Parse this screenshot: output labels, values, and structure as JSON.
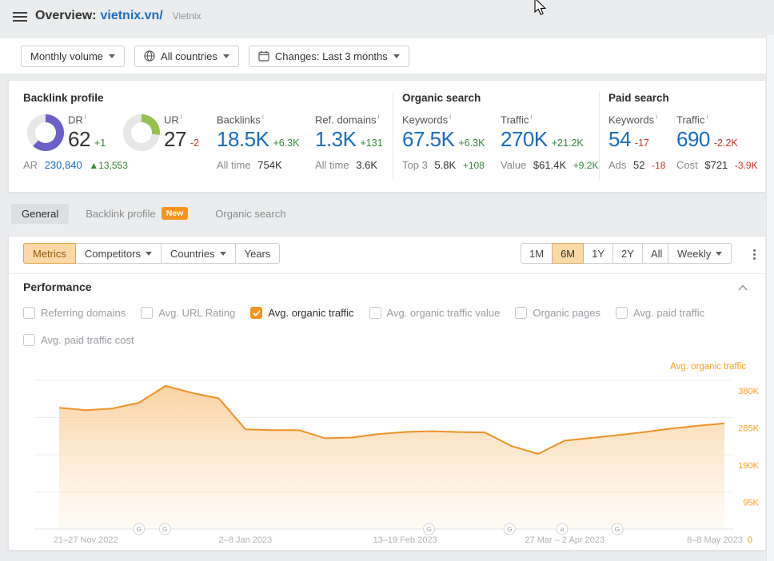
{
  "ui": {
    "info_mark": "i"
  },
  "header": {
    "title": "Overview:",
    "domain": "vietnix.vn/",
    "project": "Vietnix"
  },
  "filters": {
    "volume": "Monthly volume",
    "countries": "All countries",
    "changes": "Changes: Last 3 months"
  },
  "metrics": {
    "backlink_profile": {
      "title": "Backlink profile",
      "dr": {
        "label": "DR",
        "value": "62",
        "delta": "+1",
        "percent": 62,
        "color": "#6c5fc7"
      },
      "ur": {
        "label": "UR",
        "value": "27",
        "delta": "-2",
        "percent": 27,
        "color": "#96c04f"
      },
      "ar": {
        "label": "AR",
        "value": "230,840",
        "delta": "▲13,553"
      },
      "backlinks": {
        "label": "Backlinks",
        "value": "18.5K",
        "delta": "+6.3K",
        "sub_label": "All time",
        "sub_value": "754K"
      },
      "ref_domains": {
        "label": "Ref. domains",
        "value": "1.3K",
        "delta": "+131",
        "sub_label": "All time",
        "sub_value": "3.6K"
      }
    },
    "organic_search": {
      "title": "Organic search",
      "keywords": {
        "label": "Keywords",
        "value": "67.5K",
        "delta": "+6.3K",
        "sub_label": "Top 3",
        "sub_value": "5.8K",
        "sub_delta": "+108"
      },
      "traffic": {
        "label": "Traffic",
        "value": "270K",
        "delta": "+21.2K",
        "sub_label": "Value",
        "sub_value": "$61.4K",
        "sub_delta": "+9.2K"
      }
    },
    "paid_search": {
      "title": "Paid search",
      "keywords": {
        "label": "Keywords",
        "value": "54",
        "delta": "-17",
        "sub_label": "Ads",
        "sub_value": "52",
        "sub_delta": "-18"
      },
      "traffic": {
        "label": "Traffic",
        "value": "690",
        "delta": "-2.2K",
        "sub_label": "Cost",
        "sub_value": "$721",
        "sub_delta": "-3.9K"
      }
    }
  },
  "tabs": [
    {
      "label": "General",
      "active": true
    },
    {
      "label": "Backlink profile",
      "badge": "New"
    },
    {
      "label": "Organic search"
    }
  ],
  "toolbar": {
    "metrics": "Metrics",
    "competitors": "Competitors",
    "countries": "Countries",
    "years": "Years",
    "ranges": [
      "1M",
      "6M",
      "1Y",
      "2Y",
      "All"
    ],
    "active_range": "6M",
    "interval": "Weekly"
  },
  "performance": {
    "title": "Performance",
    "toggles": [
      {
        "label": "Referring domains",
        "checked": false
      },
      {
        "label": "Avg. URL Rating",
        "checked": false
      },
      {
        "label": "Avg. organic traffic",
        "checked": true
      },
      {
        "label": "Avg. organic traffic value",
        "checked": false
      },
      {
        "label": "Organic pages",
        "checked": false
      },
      {
        "label": "Avg. paid traffic",
        "checked": false
      },
      {
        "label": "Avg. paid traffic cost",
        "checked": false
      }
    ]
  },
  "chart_data": {
    "type": "area",
    "legend": "Avg. organic traffic",
    "legend_position": "top-right",
    "grid": true,
    "x_interval": "weekly",
    "series": [
      {
        "name": "Avg. organic traffic",
        "color": "#ef9327",
        "values_k": [
          310,
          304,
          308,
          323,
          366,
          348,
          334,
          255,
          253,
          253,
          232,
          234,
          243,
          248,
          250,
          248,
          247,
          212,
          192,
          226,
          233,
          240,
          248,
          257,
          264,
          270
        ]
      }
    ],
    "x_ticks": [
      {
        "label": "21–27 Nov 2022",
        "index": 1
      },
      {
        "label": "2–8 Jan 2023",
        "index": 7
      },
      {
        "label": "13–19 Feb 2023",
        "index": 13
      },
      {
        "label": "27 Mar – 2 Apr 2023",
        "index": 19
      },
      {
        "label": "8–8 May 2023",
        "index": 25
      }
    ],
    "y_ticks": [
      {
        "label": "380K",
        "value_k": 380
      },
      {
        "label": "285K",
        "value_k": 285
      },
      {
        "label": "190K",
        "value_k": 190
      },
      {
        "label": "95K",
        "value_k": 95
      },
      {
        "label": "0",
        "value_k": 0
      }
    ],
    "ylim_k": [
      0,
      380
    ],
    "axis_markers": [
      {
        "letter": "G",
        "x_fraction": 0.12
      },
      {
        "letter": "G",
        "x_fraction": 0.159
      },
      {
        "letter": "G",
        "x_fraction": 0.556
      },
      {
        "letter": "G",
        "x_fraction": 0.677
      },
      {
        "letter": "a",
        "x_fraction": 0.756
      },
      {
        "letter": "G",
        "x_fraction": 0.839
      }
    ]
  }
}
